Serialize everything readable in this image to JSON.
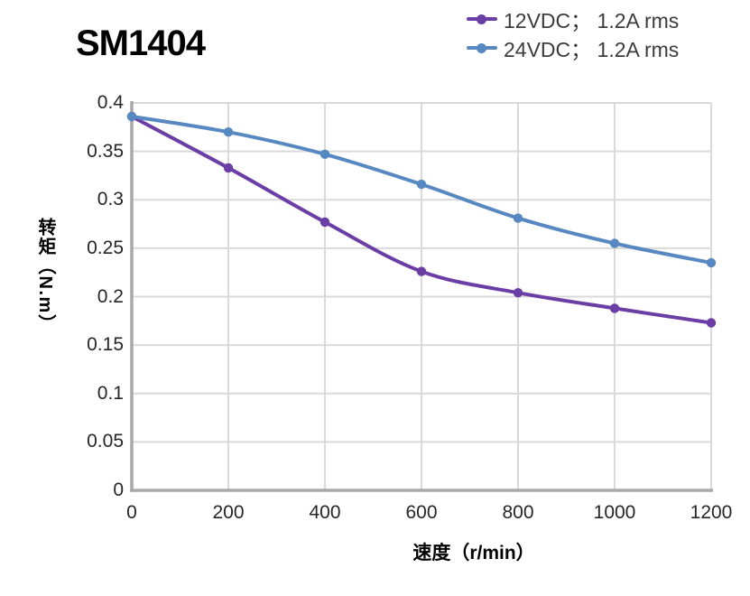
{
  "chart_data": {
    "type": "line",
    "title": "SM1404",
    "xlabel": "速度（r/min）",
    "ylabel": "转矩（N.m）",
    "x": [
      0,
      200,
      400,
      600,
      800,
      1000,
      1200
    ],
    "series": [
      {
        "name": "12VDC； 1.2A rms",
        "color": "#6B3EA5",
        "values": [
          0.386,
          0.333,
          0.277,
          0.226,
          0.204,
          0.188,
          0.173
        ]
      },
      {
        "name": "24VDC； 1.2A rms",
        "color": "#5888C1",
        "values": [
          0.386,
          0.37,
          0.347,
          0.316,
          0.281,
          0.255,
          0.235
        ]
      }
    ],
    "xlim": [
      0,
      1200
    ],
    "ylim": [
      0,
      0.4
    ],
    "x_ticks": [
      0,
      200,
      400,
      600,
      800,
      1000,
      1200
    ],
    "x_tick_labels": [
      "0",
      "200",
      "400",
      "600",
      "800",
      "1000",
      "1200"
    ],
    "y_ticks": [
      0,
      0.05,
      0.1,
      0.15,
      0.2,
      0.25,
      0.3,
      0.35,
      0.4
    ],
    "y_tick_labels": [
      "0",
      "0.05",
      "0.1",
      "0.15",
      "0.2",
      "0.25",
      "0.3",
      "0.35",
      "0.4"
    ],
    "grid": true,
    "legend_position": "top-right",
    "marker": "circle",
    "style": {
      "grid_color": "#D9D9D9",
      "axis_color": "#A8A8A8",
      "tick_color": "#262626",
      "legend_text_color": "#3C3C3C",
      "title_color": "#000000",
      "background": "#FFFFFF"
    }
  }
}
